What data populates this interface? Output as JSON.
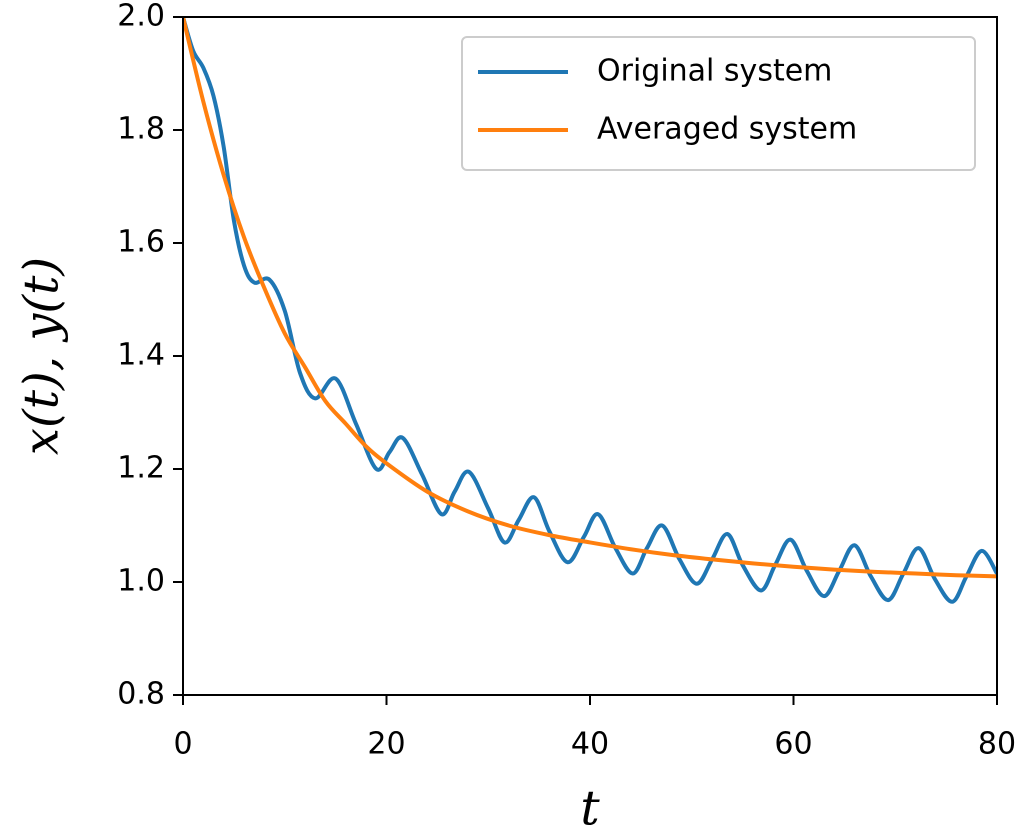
{
  "chart_data": {
    "type": "line",
    "x_label": "t",
    "y_label": "x(t), y(t)",
    "xlim": [
      0,
      80
    ],
    "ylim": [
      0.8,
      2.0
    ],
    "xticks": [
      0,
      20,
      40,
      60,
      80
    ],
    "yticks": [
      {
        "value": 0.8,
        "label": "0.8"
      },
      {
        "value": 1.0,
        "label": "1.0"
      },
      {
        "value": 1.2,
        "label": "1.2"
      },
      {
        "value": 1.4,
        "label": "1.4"
      },
      {
        "value": 1.6,
        "label": "1.6"
      },
      {
        "value": 1.8,
        "label": "1.8"
      },
      {
        "value": 2.0,
        "label": "2.0"
      }
    ],
    "grid": false,
    "legend": "upper right",
    "series": [
      {
        "name": "Original system",
        "color": "#1f77b4",
        "x": [
          0,
          1,
          2,
          3,
          4,
          5,
          6,
          7,
          8.5,
          10,
          11.5,
          13,
          15,
          17,
          19,
          20.3,
          21.6,
          23.5,
          25.4,
          26.7,
          28.1,
          30,
          31.6,
          33,
          34.5,
          36,
          37.8,
          39.4,
          40.8,
          42.5,
          44.2,
          45.6,
          47.1,
          48.8,
          50.5,
          52,
          53.5,
          55,
          56.8,
          58.2,
          59.7,
          61.3,
          63,
          64.5,
          66,
          67.6,
          69.3,
          70.8,
          72.3,
          73.9,
          75.6,
          77,
          78.5,
          80
        ],
        "values": [
          2.0,
          1.94,
          1.91,
          1.86,
          1.77,
          1.64,
          1.56,
          1.53,
          1.535,
          1.48,
          1.37,
          1.325,
          1.36,
          1.28,
          1.2,
          1.23,
          1.255,
          1.19,
          1.12,
          1.16,
          1.195,
          1.13,
          1.07,
          1.11,
          1.15,
          1.09,
          1.035,
          1.08,
          1.12,
          1.06,
          1.015,
          1.06,
          1.1,
          1.04,
          0.997,
          1.04,
          1.085,
          1.03,
          0.985,
          1.03,
          1.075,
          1.02,
          0.975,
          1.02,
          1.065,
          1.01,
          0.968,
          1.015,
          1.06,
          1.005,
          0.965,
          1.01,
          1.055,
          1.015
        ]
      },
      {
        "name": "Averaged system",
        "color": "#ff7f0e",
        "x": [
          0,
          2,
          4,
          6,
          8,
          10,
          12,
          14,
          16,
          18,
          20,
          24,
          28,
          32,
          36,
          40,
          44,
          48,
          52,
          56,
          60,
          64,
          68,
          72,
          76,
          80
        ],
        "values": [
          2.0,
          1.85,
          1.72,
          1.61,
          1.52,
          1.44,
          1.38,
          1.32,
          1.28,
          1.24,
          1.21,
          1.16,
          1.125,
          1.1,
          1.083,
          1.07,
          1.058,
          1.048,
          1.04,
          1.033,
          1.027,
          1.022,
          1.018,
          1.015,
          1.012,
          1.01
        ]
      }
    ]
  }
}
